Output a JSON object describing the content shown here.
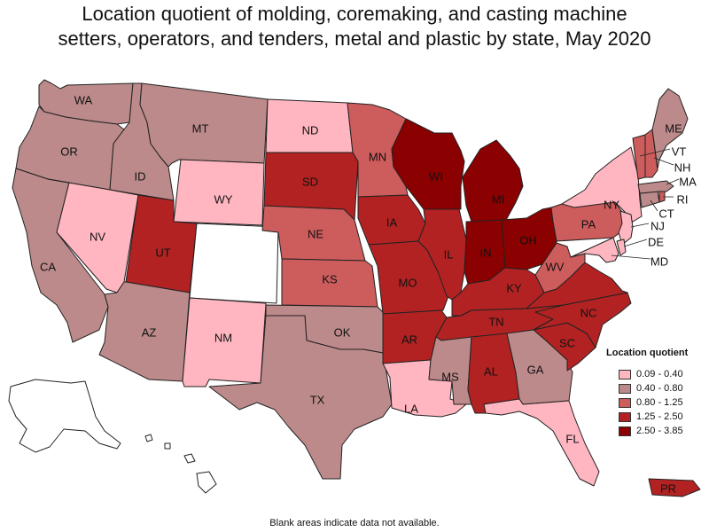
{
  "title": {
    "line1": "Location quotient of molding, coremaking, and casting machine",
    "line2": "setters, operators, and tenders, metal and plastic by state, May 2020"
  },
  "legend": {
    "title": "Location quotient",
    "items": [
      {
        "label": "0.09 - 0.40",
        "color": "#ffb6c1"
      },
      {
        "label": "0.40 - 0.80",
        "color": "#bc8a8a"
      },
      {
        "label": "0.80 - 1.25",
        "color": "#cd5c5c"
      },
      {
        "label": "1.25 - 2.50",
        "color": "#b22222"
      },
      {
        "label": "2.50 - 3.85",
        "color": "#8b0000"
      }
    ],
    "nodata_color": "#ffffff"
  },
  "footnote": "Blank areas indicate data not available.",
  "states": [
    {
      "abbr": "WA",
      "cls": 1
    },
    {
      "abbr": "OR",
      "cls": 1
    },
    {
      "abbr": "CA",
      "cls": 1
    },
    {
      "abbr": "ID",
      "cls": 1
    },
    {
      "abbr": "NV",
      "cls": 0
    },
    {
      "abbr": "MT",
      "cls": 1
    },
    {
      "abbr": "WY",
      "cls": 0
    },
    {
      "abbr": "UT",
      "cls": 3
    },
    {
      "abbr": "AZ",
      "cls": 1
    },
    {
      "abbr": "CO",
      "cls": -1
    },
    {
      "abbr": "NM",
      "cls": 0
    },
    {
      "abbr": "ND",
      "cls": 0
    },
    {
      "abbr": "SD",
      "cls": 3
    },
    {
      "abbr": "NE",
      "cls": 2
    },
    {
      "abbr": "KS",
      "cls": 2
    },
    {
      "abbr": "OK",
      "cls": 1
    },
    {
      "abbr": "TX",
      "cls": 1
    },
    {
      "abbr": "MN",
      "cls": 2
    },
    {
      "abbr": "IA",
      "cls": 3
    },
    {
      "abbr": "MO",
      "cls": 3
    },
    {
      "abbr": "AR",
      "cls": 3
    },
    {
      "abbr": "LA",
      "cls": 0
    },
    {
      "abbr": "WI",
      "cls": 4
    },
    {
      "abbr": "IL",
      "cls": 3
    },
    {
      "abbr": "MI",
      "cls": 4
    },
    {
      "abbr": "IN",
      "cls": 4
    },
    {
      "abbr": "OH",
      "cls": 4
    },
    {
      "abbr": "KY",
      "cls": 3
    },
    {
      "abbr": "TN",
      "cls": 3
    },
    {
      "abbr": "MS",
      "cls": 1
    },
    {
      "abbr": "AL",
      "cls": 3
    },
    {
      "abbr": "GA",
      "cls": 1
    },
    {
      "abbr": "FL",
      "cls": 0
    },
    {
      "abbr": "SC",
      "cls": 3
    },
    {
      "abbr": "NC",
      "cls": 3
    },
    {
      "abbr": "VA",
      "cls": 3
    },
    {
      "abbr": "WV",
      "cls": 2
    },
    {
      "abbr": "PA",
      "cls": 2
    },
    {
      "abbr": "NY",
      "cls": 0
    },
    {
      "abbr": "NJ",
      "cls": 0
    },
    {
      "abbr": "DE",
      "cls": 0
    },
    {
      "abbr": "MD",
      "cls": 0
    },
    {
      "abbr": "CT",
      "cls": 1
    },
    {
      "abbr": "RI",
      "cls": 2
    },
    {
      "abbr": "MA",
      "cls": 1
    },
    {
      "abbr": "VT",
      "cls": 2
    },
    {
      "abbr": "NH",
      "cls": 2
    },
    {
      "abbr": "ME",
      "cls": 1
    },
    {
      "abbr": "AK",
      "cls": -1
    },
    {
      "abbr": "HI",
      "cls": -1
    },
    {
      "abbr": "PR",
      "cls": 3
    }
  ]
}
